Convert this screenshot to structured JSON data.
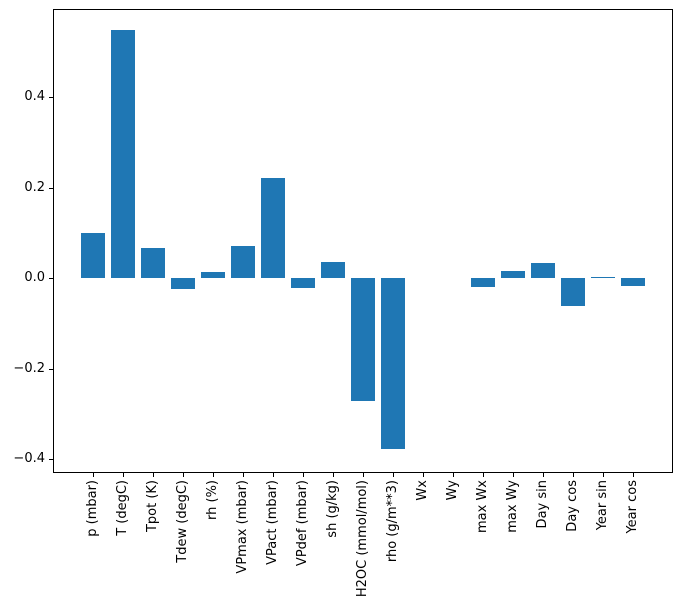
{
  "figure": {
    "background_color": "#ffffff",
    "spine_color": "#000000",
    "tick_color": "#000000"
  },
  "chart_data": {
    "type": "bar",
    "title": "",
    "xlabel": "",
    "ylabel": "",
    "grid": false,
    "legend": null,
    "bar_color": "#1f77b4",
    "bar_width_fraction": 0.8,
    "categories": [
      "p (mbar)",
      "T (degC)",
      "Tpot (K)",
      "Tdew (degC)",
      "rh (%)",
      "VPmax (mbar)",
      "VPact (mbar)",
      "VPdef (mbar)",
      "sh (g/kg)",
      "H2OC (mmol/mol)",
      "rho (g/m**3)",
      "Wx",
      "Wy",
      "max Wx",
      "max Wy",
      "Day sin",
      "Day cos",
      "Year sin",
      "Year cos"
    ],
    "values": [
      0.1,
      0.549,
      0.066,
      -0.023,
      0.015,
      0.072,
      0.221,
      -0.021,
      0.036,
      -0.272,
      -0.378,
      0.0,
      0.0,
      -0.02,
      0.016,
      0.033,
      -0.06,
      0.003,
      -0.016
    ],
    "ylim": [
      -0.43,
      0.595
    ],
    "yticks": [
      -0.4,
      -0.2,
      0.0,
      0.2,
      0.4
    ],
    "ytick_labels": [
      "−0.4",
      "−0.2",
      "0.0",
      "0.2",
      "0.4"
    ],
    "x_tick_rotation_deg": 90
  }
}
